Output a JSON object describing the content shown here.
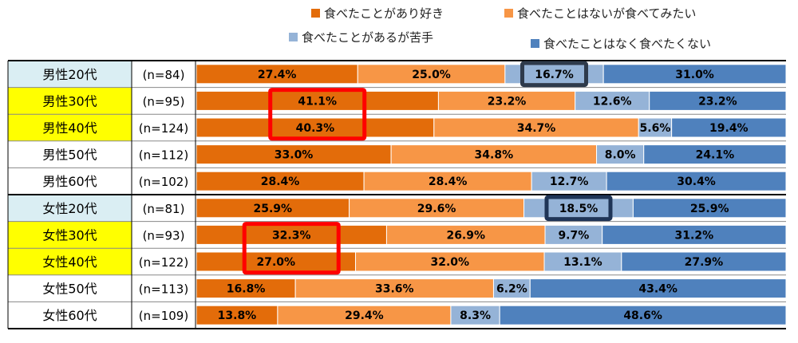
{
  "chart_data": {
    "type": "bar",
    "stacked": true,
    "orientation": "horizontal",
    "normalized_percent": true,
    "grid": false,
    "legend_position": "top-right",
    "series": [
      {
        "name": "食べたことがあり好き",
        "color": "#E36C0A",
        "values": [
          27.4,
          41.1,
          40.3,
          33.0,
          28.4,
          25.9,
          32.3,
          27.0,
          16.8,
          13.8
        ]
      },
      {
        "name": "食べたことはないが食べてみたい",
        "color": "#F79646",
        "values": [
          25.0,
          23.2,
          34.7,
          34.8,
          28.4,
          29.6,
          26.9,
          32.0,
          33.6,
          29.4
        ]
      },
      {
        "name": "食べたことがあるが苦手",
        "color": "#95B3D7",
        "values": [
          16.7,
          12.6,
          5.6,
          8.0,
          12.7,
          18.5,
          9.7,
          13.1,
          6.2,
          8.3
        ]
      },
      {
        "name": "食べたことはなく食べたくない",
        "color": "#4F81BD",
        "values": [
          31.0,
          23.2,
          19.4,
          24.1,
          30.4,
          25.9,
          31.2,
          27.9,
          43.4,
          48.6
        ]
      }
    ],
    "rows": [
      {
        "label": "男性20代",
        "n": "(n=84)",
        "label_bg": "#DAEEF3"
      },
      {
        "label": "男性30代",
        "n": "(n=95)",
        "label_bg": "#FFFF00"
      },
      {
        "label": "男性40代",
        "n": "(n=124)",
        "label_bg": "#FFFF00"
      },
      {
        "label": "男性50代",
        "n": "(n=112)",
        "label_bg": "#FFFFFF"
      },
      {
        "label": "男性60代",
        "n": "(n=102)",
        "label_bg": "#FFFFFF"
      },
      {
        "label": "女性20代",
        "n": "(n=81)",
        "label_bg": "#DAEEF3"
      },
      {
        "label": "女性30代",
        "n": "(n=93)",
        "label_bg": "#FFFF00"
      },
      {
        "label": "女性40代",
        "n": "(n=122)",
        "label_bg": "#FFFF00"
      },
      {
        "label": "女性50代",
        "n": "(n=113)",
        "label_bg": "#FFFFFF"
      },
      {
        "label": "女性60代",
        "n": "(n=109)",
        "label_bg": "#FFFFFF"
      }
    ],
    "highlights": [
      {
        "row": 0,
        "series": 2,
        "color": "#2E3A4B"
      },
      {
        "row": 1,
        "series": 0,
        "color": "#FF0000",
        "span_rows": 2
      },
      {
        "row": 5,
        "series": 2,
        "color": "#1F3557"
      },
      {
        "row": 6,
        "series": 0,
        "color": "#FF0000",
        "span_rows": 2
      }
    ]
  }
}
